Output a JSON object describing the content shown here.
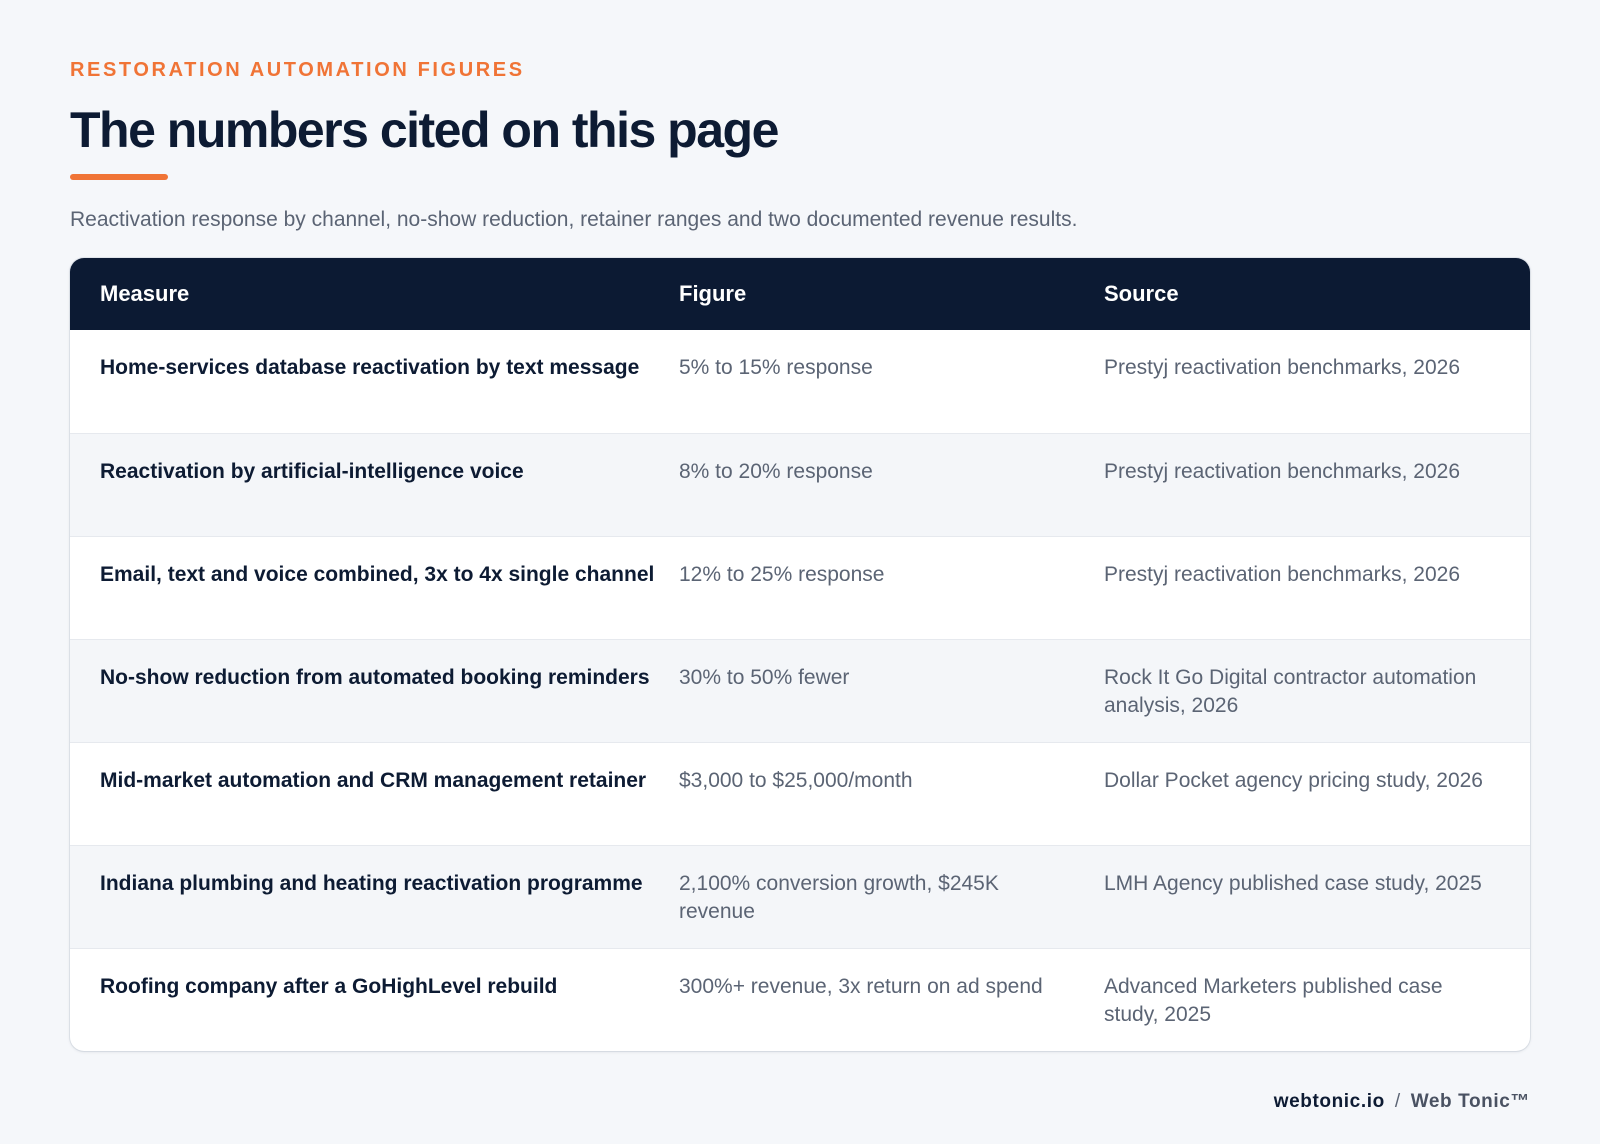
{
  "header": {
    "eyebrow": "RESTORATION AUTOMATION FIGURES",
    "title": "The numbers cited on this page",
    "subtitle": "Reactivation response by channel, no-show reduction, retainer ranges and two documented revenue results."
  },
  "table": {
    "columns": [
      "Measure",
      "Figure",
      "Source"
    ],
    "rows": [
      {
        "measure": "Home-services database reactivation by text message",
        "figure": "5% to 15% response",
        "source": "Prestyj reactivation benchmarks, 2026"
      },
      {
        "measure": "Reactivation by artificial-intelligence voice",
        "figure": "8% to 20% response",
        "source": "Prestyj reactivation benchmarks, 2026"
      },
      {
        "measure": "Email, text and voice combined, 3x to 4x single channel",
        "figure": "12% to 25% response",
        "source": "Prestyj reactivation benchmarks, 2026"
      },
      {
        "measure": "No-show reduction from automated booking reminders",
        "figure": "30% to 50% fewer",
        "source": "Rock It Go Digital contractor automation analysis, 2026"
      },
      {
        "measure": "Mid-market automation and CRM management retainer",
        "figure": "$3,000 to $25,000/month",
        "source": "Dollar Pocket agency pricing study, 2026"
      },
      {
        "measure": "Indiana plumbing and heating reactivation programme",
        "figure": "2,100% conversion growth, $245K revenue",
        "source": "LMH Agency published case study, 2025"
      },
      {
        "measure": "Roofing company after a GoHighLevel rebuild",
        "figure": "300%+ revenue, 3x return on ad spend",
        "source": "Advanced Marketers published case study, 2025"
      }
    ]
  },
  "footer": {
    "domain": "webtonic.io",
    "separator": "/",
    "brand": "Web Tonic™"
  },
  "colors": {
    "accent": "#f07436",
    "header_bg": "#0c1a33",
    "page_bg": "#f5f7fa",
    "row_alt": "#f4f6f9"
  }
}
